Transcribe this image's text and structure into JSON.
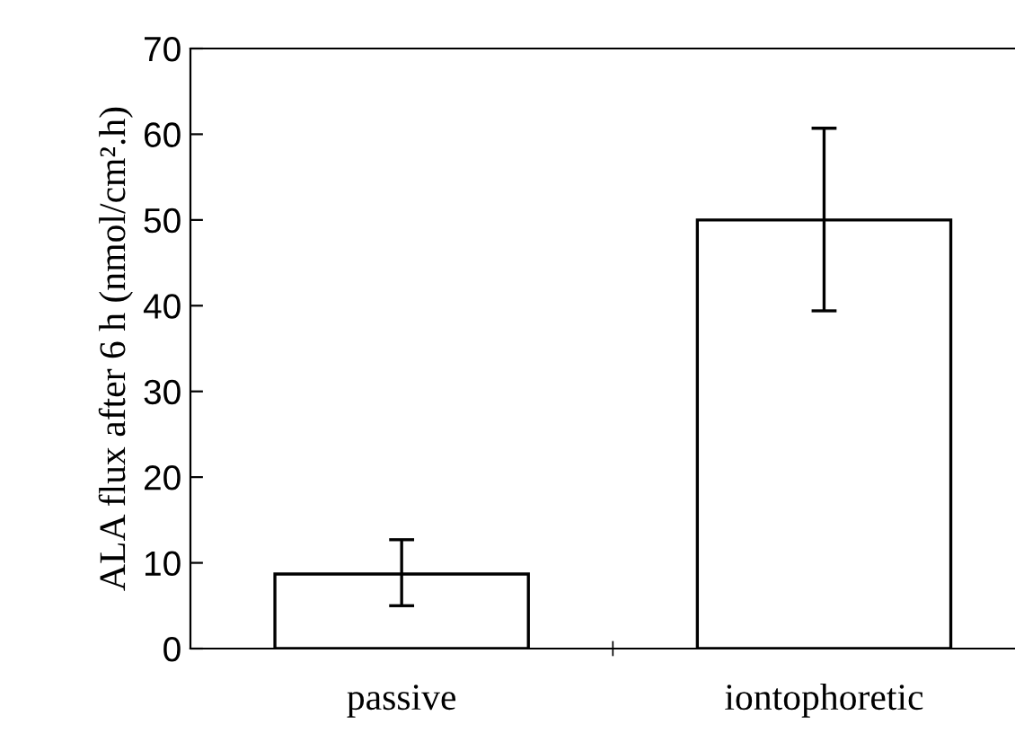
{
  "chart_data": {
    "type": "bar",
    "ylabel": "ALA flux after 6 h (nmol/cm².h)",
    "categories": [
      "passive",
      "iontophoretic"
    ],
    "values": [
      8.7,
      50.0
    ],
    "errors": [
      [
        5.0,
        12.7
      ],
      [
        39.4,
        60.7
      ]
    ],
    "color": "#ffffff",
    "ylim": [
      0,
      70
    ],
    "yticks": [
      0,
      10,
      20,
      30,
      40,
      50,
      60,
      70
    ],
    "grid": false
  }
}
